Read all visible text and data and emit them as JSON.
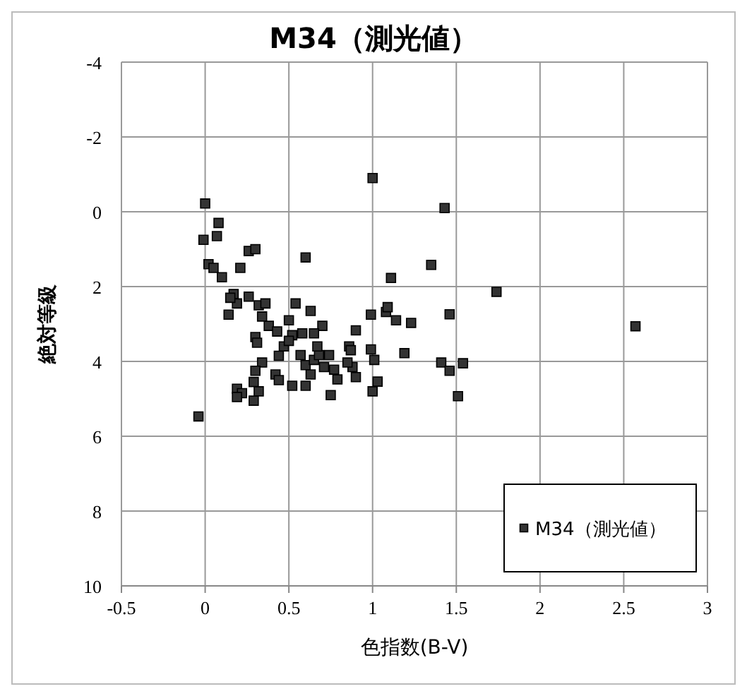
{
  "chart_data": {
    "type": "scatter",
    "title": "M34（測光値）",
    "xlabel": "色指数(B-V)",
    "ylabel": "絶対等級",
    "xlim": [
      -0.5,
      3
    ],
    "xticks": [
      -0.5,
      0,
      0.5,
      1,
      1.5,
      2,
      2.5,
      3
    ],
    "ylim": [
      10,
      -4
    ],
    "yticks": [
      -4,
      -2,
      0,
      2,
      4,
      6,
      8,
      10
    ],
    "grid": true,
    "legend": "bottom right",
    "marker": "square",
    "series": [
      {
        "name": "M34（測光値）",
        "color": "#333333",
        "x": [
          0,
          1.0,
          1.43,
          0.08,
          -0.01,
          0.07,
          0.26,
          0.3,
          0.6,
          0.02,
          0.05,
          0.21,
          0.1,
          1.35,
          1.11,
          1.74,
          2.57,
          0.17,
          0.19,
          0.15,
          0.14,
          0.26,
          0.32,
          0.36,
          0.34,
          0.38,
          0.43,
          0.54,
          0.63,
          0.5,
          0.7,
          0.52,
          0.58,
          0.65,
          0.3,
          0.31,
          0.47,
          0.5,
          0.44,
          0.34,
          0.3,
          0.29,
          0.32,
          0.19,
          0.22,
          0.19,
          0.29,
          0.42,
          0.44,
          0.52,
          0.6,
          0.57,
          0.6,
          0.63,
          0.65,
          0.71,
          0.68,
          0.74,
          0.77,
          0.79,
          0.67,
          0.75,
          0.86,
          0.87,
          0.9,
          0.88,
          0.9,
          0.85,
          0.99,
          0.99,
          1.01,
          1.03,
          1.0,
          1.08,
          1.09,
          1.14,
          1.23,
          1.19,
          1.46,
          1.41,
          1.46,
          1.54,
          1.51,
          -0.04
        ],
        "values": [
          -0.22,
          -0.9,
          -0.1,
          0.3,
          0.75,
          0.65,
          1.05,
          1.0,
          1.22,
          1.4,
          1.5,
          1.5,
          1.75,
          1.42,
          1.77,
          2.14,
          3.06,
          2.2,
          2.45,
          2.3,
          2.75,
          2.27,
          2.5,
          2.45,
          2.8,
          3.05,
          3.2,
          2.45,
          2.65,
          2.9,
          3.05,
          3.3,
          3.25,
          3.25,
          3.35,
          3.5,
          3.6,
          3.45,
          3.85,
          4.03,
          4.25,
          4.55,
          4.8,
          4.73,
          4.85,
          4.95,
          5.05,
          4.35,
          4.5,
          4.65,
          4.65,
          3.83,
          4.1,
          4.35,
          3.96,
          4.15,
          3.83,
          3.83,
          4.22,
          4.48,
          3.6,
          4.9,
          3.6,
          3.7,
          3.17,
          4.15,
          4.42,
          4.03,
          2.75,
          3.68,
          3.96,
          4.54,
          4.8,
          2.68,
          2.55,
          2.9,
          2.97,
          3.78,
          2.74,
          4.03,
          4.25,
          4.05,
          4.93,
          5.47
        ]
      }
    ]
  }
}
